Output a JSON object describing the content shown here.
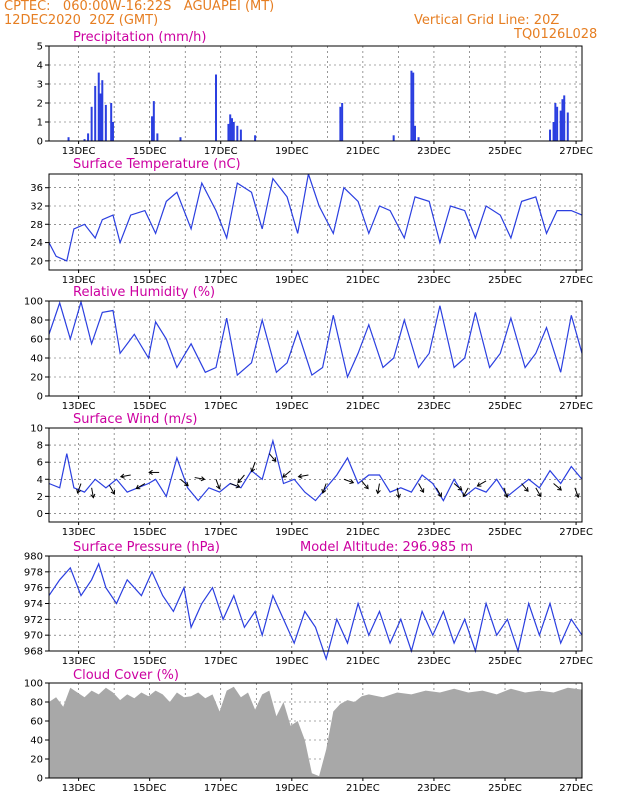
{
  "header": {
    "left_line1": "CPTEC:   060:00W-16:22S   AGUAPEI (MT)",
    "left_line2": "12DEC2020  20Z (GMT)",
    "right_line1": "Vertical Grid Line: 20Z",
    "right_line2": "TQ0126L028"
  },
  "colors": {
    "header": "#e67e22",
    "title": "#cc00a0",
    "line": "#2b3fe0",
    "cloud": "#a8a8a8",
    "wind": "#000000"
  },
  "x_tick_labels": [
    "13DEC",
    "15DEC",
    "17DEC",
    "19DEC",
    "21DEC",
    "23DEC",
    "25DEC",
    "27DEC"
  ],
  "chart_data": [
    {
      "type": "bar",
      "title": "Precipitation (mm/h)",
      "ylim": [
        0,
        5
      ],
      "yticks": [
        0,
        1,
        2,
        3,
        4,
        5
      ],
      "x_unit": "day of December 2020 (20Z gridlines)",
      "x": [
        12.55,
        13.0,
        13.1,
        13.2,
        13.3,
        13.4,
        13.45,
        13.5,
        13.6,
        13.75,
        13.8,
        14.9,
        14.95,
        15.05,
        15.7,
        16.7,
        17.05,
        17.1,
        17.15,
        17.2,
        17.3,
        17.4,
        17.8,
        20.2,
        20.25,
        21.7,
        22.2,
        22.25,
        22.3,
        22.4,
        26.1,
        26.2,
        26.25,
        26.3,
        26.4,
        26.45,
        26.5,
        26.6
      ],
      "values": [
        0.2,
        0.1,
        0.4,
        1.8,
        2.9,
        3.6,
        2.5,
        3.2,
        1.9,
        2.0,
        1.0,
        1.3,
        2.1,
        0.4,
        0.2,
        3.5,
        0.9,
        1.4,
        1.2,
        1.0,
        0.8,
        0.6,
        0.3,
        1.8,
        2.0,
        0.3,
        3.7,
        3.6,
        0.8,
        0.2,
        0.6,
        1.0,
        2.0,
        1.8,
        1.6,
        2.2,
        2.4,
        1.5
      ]
    },
    {
      "type": "line",
      "title": "Surface Temperature (nC)",
      "ylim": [
        18,
        39
      ],
      "yticks": [
        20,
        24,
        28,
        32,
        36
      ],
      "x": [
        12.0,
        12.2,
        12.5,
        12.7,
        13.0,
        13.3,
        13.5,
        13.8,
        14.0,
        14.3,
        14.7,
        15.0,
        15.3,
        15.6,
        16.0,
        16.3,
        16.7,
        17.0,
        17.3,
        17.7,
        18.0,
        18.3,
        18.7,
        19.0,
        19.3,
        19.6,
        20.0,
        20.3,
        20.7,
        21.0,
        21.3,
        21.6,
        22.0,
        22.3,
        22.7,
        23.0,
        23.3,
        23.7,
        24.0,
        24.3,
        24.7,
        25.0,
        25.3,
        25.7,
        26.0,
        26.3,
        26.7,
        27.0
      ],
      "values": [
        24,
        21,
        20,
        27,
        28,
        25,
        29,
        30,
        24,
        30,
        31,
        26,
        33,
        35,
        27,
        37,
        31,
        25,
        37,
        35,
        27,
        38,
        34,
        26,
        39,
        32,
        26,
        36,
        33,
        26,
        32,
        31,
        25,
        34,
        33,
        24,
        32,
        31,
        25,
        32,
        30,
        25,
        33,
        34,
        26,
        31,
        31,
        30
      ]
    },
    {
      "type": "line",
      "title": "Relative Humidity (%)",
      "ylim": [
        0,
        100
      ],
      "yticks": [
        0,
        20,
        40,
        60,
        80,
        100
      ],
      "x": [
        12.0,
        12.3,
        12.6,
        12.9,
        13.2,
        13.5,
        13.8,
        14.0,
        14.4,
        14.8,
        15.0,
        15.3,
        15.6,
        16.0,
        16.4,
        16.7,
        17.0,
        17.3,
        17.7,
        18.0,
        18.4,
        18.7,
        19.0,
        19.4,
        19.7,
        20.0,
        20.4,
        20.7,
        21.0,
        21.4,
        21.7,
        22.0,
        22.4,
        22.7,
        23.0,
        23.4,
        23.7,
        24.0,
        24.4,
        24.7,
        25.0,
        25.4,
        25.7,
        26.0,
        26.4,
        26.7,
        27.0
      ],
      "values": [
        65,
        98,
        60,
        99,
        55,
        88,
        90,
        45,
        65,
        40,
        78,
        60,
        30,
        55,
        25,
        30,
        82,
        22,
        35,
        80,
        25,
        35,
        68,
        22,
        30,
        85,
        20,
        45,
        75,
        30,
        40,
        80,
        30,
        45,
        95,
        30,
        40,
        88,
        30,
        45,
        82,
        30,
        45,
        72,
        25,
        85,
        45
      ]
    },
    {
      "type": "line",
      "title": "Surface Wind (m/s)",
      "ylim": [
        -1,
        10
      ],
      "yticks": [
        0,
        2,
        4,
        6,
        8,
        10
      ],
      "x": [
        12.0,
        12.3,
        12.5,
        12.7,
        13.0,
        13.3,
        13.6,
        13.9,
        14.2,
        14.5,
        14.8,
        15.0,
        15.3,
        15.6,
        15.9,
        16.2,
        16.5,
        16.8,
        17.1,
        17.4,
        17.7,
        18.0,
        18.3,
        18.6,
        18.9,
        19.2,
        19.5,
        19.8,
        20.1,
        20.4,
        20.7,
        21.0,
        21.3,
        21.6,
        21.9,
        22.2,
        22.5,
        22.8,
        23.1,
        23.4,
        23.7,
        24.0,
        24.3,
        24.6,
        24.9,
        25.2,
        25.5,
        25.8,
        26.1,
        26.4,
        26.7,
        27.0
      ],
      "values": [
        3.5,
        3.0,
        7.0,
        3.0,
        2.5,
        4.0,
        3.0,
        4.0,
        2.5,
        3.0,
        3.5,
        4.0,
        2.0,
        6.5,
        3.0,
        1.5,
        3.0,
        2.5,
        3.5,
        3.0,
        5.0,
        4.0,
        8.5,
        3.5,
        4.0,
        2.5,
        1.5,
        3.0,
        4.5,
        6.5,
        3.5,
        4.5,
        4.5,
        2.5,
        3.0,
        2.5,
        4.5,
        3.5,
        1.5,
        4.0,
        2.0,
        3.0,
        2.5,
        4.0,
        2.0,
        3.0,
        4.0,
        3.0,
        5.0,
        3.5,
        5.5,
        4.0
      ],
      "arrows_note": "wind barbs shown as arrows",
      "arrows": [
        {
          "x": 12.9,
          "y": 3.5,
          "dir": 200
        },
        {
          "x": 13.2,
          "y": 3.0,
          "dir": 170
        },
        {
          "x": 13.7,
          "y": 3.3,
          "dir": 150
        },
        {
          "x": 14.3,
          "y": 4.5,
          "dir": 260
        },
        {
          "x": 14.7,
          "y": 3.5,
          "dir": 240
        },
        {
          "x": 15.1,
          "y": 4.8,
          "dir": 270
        },
        {
          "x": 15.7,
          "y": 4.0,
          "dir": 130
        },
        {
          "x": 16.1,
          "y": 4.2,
          "dir": 100
        },
        {
          "x": 16.7,
          "y": 4.0,
          "dir": 160
        },
        {
          "x": 17.1,
          "y": 3.5,
          "dir": 110
        },
        {
          "x": 17.5,
          "y": 4.5,
          "dir": 220
        },
        {
          "x": 17.8,
          "y": 6.0,
          "dir": 200
        },
        {
          "x": 18.2,
          "y": 7.0,
          "dir": 140
        },
        {
          "x": 18.8,
          "y": 5.0,
          "dir": 230
        },
        {
          "x": 19.3,
          "y": 4.5,
          "dir": 260
        },
        {
          "x": 19.8,
          "y": 3.5,
          "dir": 200
        },
        {
          "x": 20.3,
          "y": 4.0,
          "dir": 110
        },
        {
          "x": 20.8,
          "y": 3.8,
          "dir": 140
        },
        {
          "x": 21.3,
          "y": 3.5,
          "dir": 190
        },
        {
          "x": 21.8,
          "y": 3.0,
          "dir": 170
        },
        {
          "x": 22.4,
          "y": 3.5,
          "dir": 150
        },
        {
          "x": 22.9,
          "y": 3.0,
          "dir": 150
        },
        {
          "x": 23.4,
          "y": 3.5,
          "dir": 130
        },
        {
          "x": 23.8,
          "y": 3.0,
          "dir": 210
        },
        {
          "x": 24.3,
          "y": 3.8,
          "dir": 240
        },
        {
          "x": 24.8,
          "y": 3.0,
          "dir": 160
        },
        {
          "x": 25.3,
          "y": 3.5,
          "dir": 140
        },
        {
          "x": 25.7,
          "y": 3.0,
          "dir": 150
        },
        {
          "x": 26.2,
          "y": 3.5,
          "dir": 130
        },
        {
          "x": 26.8,
          "y": 3.0,
          "dir": 160
        }
      ]
    },
    {
      "type": "line",
      "title": "Surface Pressure (hPa)",
      "annotation": "Model Altitude: 296.985 m",
      "ylim": [
        968,
        980
      ],
      "yticks": [
        968,
        970,
        972,
        974,
        976,
        978,
        980
      ],
      "x": [
        12.0,
        12.3,
        12.6,
        12.9,
        13.2,
        13.4,
        13.6,
        13.9,
        14.2,
        14.4,
        14.6,
        14.9,
        15.2,
        15.5,
        15.8,
        16.0,
        16.3,
        16.6,
        16.9,
        17.2,
        17.5,
        17.8,
        18.0,
        18.3,
        18.6,
        18.9,
        19.2,
        19.5,
        19.8,
        20.1,
        20.4,
        20.7,
        21.0,
        21.3,
        21.6,
        21.9,
        22.2,
        22.5,
        22.8,
        23.1,
        23.4,
        23.7,
        24.0,
        24.3,
        24.6,
        24.9,
        25.2,
        25.5,
        25.8,
        26.1,
        26.4,
        26.7,
        27.0
      ],
      "values": [
        975,
        977,
        978.5,
        975,
        977,
        979,
        976,
        974,
        977,
        976,
        975,
        978,
        975,
        973,
        976,
        971,
        974,
        976,
        972,
        975,
        971,
        973,
        970,
        975,
        972,
        969,
        973,
        971,
        967,
        972,
        969,
        974,
        970,
        973,
        969,
        972,
        968,
        973,
        970,
        973,
        969,
        972,
        968,
        974,
        970,
        972,
        968,
        974,
        970,
        974,
        969,
        972,
        970
      ]
    },
    {
      "type": "area",
      "title": "Cloud Cover (%)",
      "ylim": [
        0,
        100
      ],
      "yticks": [
        0,
        20,
        40,
        60,
        80,
        100
      ],
      "x": [
        12.0,
        12.2,
        12.4,
        12.6,
        12.8,
        13.0,
        13.2,
        13.4,
        13.6,
        13.8,
        14.0,
        14.2,
        14.4,
        14.6,
        14.8,
        15.0,
        15.2,
        15.4,
        15.6,
        15.8,
        16.0,
        16.2,
        16.4,
        16.6,
        16.8,
        17.0,
        17.2,
        17.4,
        17.6,
        17.8,
        18.0,
        18.2,
        18.4,
        18.6,
        18.8,
        19.0,
        19.2,
        19.4,
        19.6,
        19.8,
        20.0,
        20.2,
        20.4,
        20.6,
        20.8,
        21.0,
        21.4,
        21.8,
        22.2,
        22.6,
        23.0,
        23.4,
        23.8,
        24.2,
        24.6,
        25.0,
        25.4,
        25.8,
        26.2,
        26.6,
        27.0
      ],
      "values": [
        80,
        85,
        75,
        95,
        90,
        85,
        92,
        88,
        95,
        90,
        82,
        88,
        84,
        90,
        86,
        92,
        88,
        80,
        90,
        85,
        86,
        90,
        84,
        88,
        70,
        92,
        96,
        85,
        90,
        72,
        88,
        92,
        65,
        80,
        55,
        60,
        40,
        5,
        2,
        30,
        70,
        78,
        82,
        80,
        86,
        88,
        85,
        90,
        88,
        92,
        90,
        94,
        90,
        92,
        88,
        94,
        90,
        92,
        90,
        95,
        93
      ]
    }
  ]
}
